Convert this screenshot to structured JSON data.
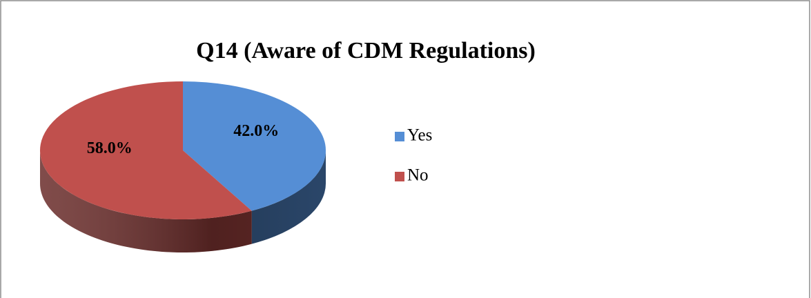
{
  "chart_data": {
    "type": "pie",
    "title": "Q14 (Aware of CDM Regulations)",
    "categories": [
      "Yes",
      "No"
    ],
    "values": [
      42,
      58
    ],
    "value_labels": [
      "42.0%",
      "58.0%"
    ],
    "colors": [
      "#558ed5",
      "#c0504d"
    ],
    "legend": "right"
  }
}
